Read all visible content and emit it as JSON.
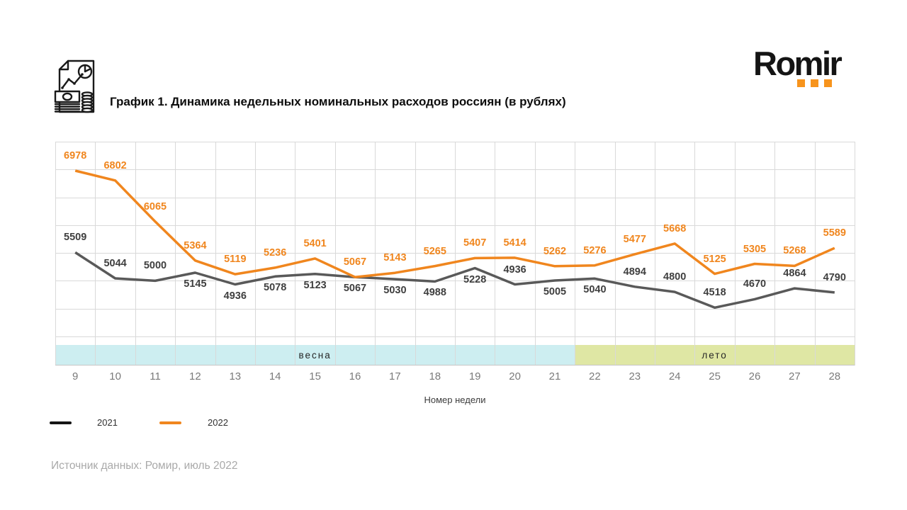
{
  "header": {
    "title": "График 1. Динамика недельных номинальных расходов россиян (в рублях)",
    "logo_text": "Romir"
  },
  "theme": {
    "accent_orange": "#F7941D",
    "grid_color": "#D9D9D9",
    "band_spring": "#CDEEF1",
    "band_summer": "#DFE7A4"
  },
  "chart_data": {
    "type": "line",
    "title": "График 1. Динамика недельных номинальных расходов россиян (в рублях)",
    "xlabel": "Номер недели",
    "ylabel": "",
    "x": [
      9,
      10,
      11,
      12,
      13,
      14,
      15,
      16,
      17,
      18,
      19,
      20,
      21,
      22,
      23,
      24,
      25,
      26,
      27,
      28
    ],
    "ylim": [
      4000,
      7500
    ],
    "grid_step": 500,
    "grid": true,
    "legend_position": "bottom-left",
    "series": [
      {
        "name": "2021",
        "color": "#595959",
        "label_color": "#3f3f3f",
        "values": [
          5509,
          5044,
          5000,
          5145,
          4936,
          5078,
          5123,
          5067,
          5030,
          4988,
          5228,
          4936,
          5005,
          5040,
          4894,
          4800,
          4518,
          4670,
          4864,
          4790
        ],
        "label_positions": [
          "above",
          "above",
          "above",
          "below",
          "below",
          "below",
          "below",
          "below",
          "below",
          "below",
          "below",
          "above",
          "below",
          "below",
          "above",
          "above",
          "above",
          "above",
          "above",
          "above"
        ]
      },
      {
        "name": "2022",
        "color": "#F0861E",
        "label_color": "#F0861E",
        "values": [
          6978,
          6802,
          6065,
          5364,
          5119,
          5236,
          5401,
          5067,
          5143,
          5265,
          5407,
          5414,
          5262,
          5276,
          5477,
          5668,
          5125,
          5305,
          5268,
          5589
        ],
        "label_positions": [
          "above",
          "above",
          "above",
          "above",
          "above",
          "above",
          "above",
          "above",
          "above",
          "above",
          "above",
          "above",
          "above",
          "above",
          "above",
          "above",
          "above",
          "above",
          "above",
          "above"
        ]
      }
    ],
    "bands": [
      {
        "label": "весна",
        "color": "#CDEEF1",
        "from_week": 9,
        "to_week": 21
      },
      {
        "label": "лето",
        "color": "#DFE7A4",
        "from_week": 22,
        "to_week": 28
      }
    ]
  },
  "legend": {
    "items": [
      {
        "label": "2021",
        "marker_color": "#151515"
      },
      {
        "label": "2022",
        "marker_color": "#F0861E"
      }
    ]
  },
  "footer": {
    "source": "Источник данных: Ромир, июль 2022"
  }
}
